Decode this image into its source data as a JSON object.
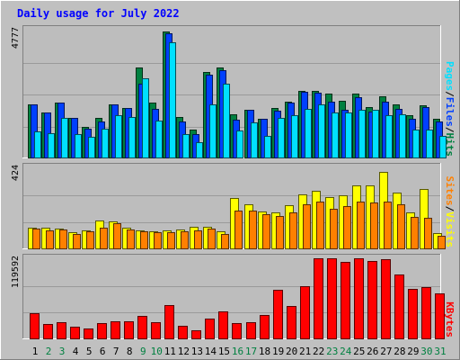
{
  "title": "Daily usage for July 2022",
  "colors": {
    "background": "#c0c0c0",
    "plot_bg": "#bdbdbd",
    "title": "#0000ff",
    "hits": "#008040",
    "files": "#0040ff",
    "pages": "#00e0ff",
    "visits": "#ffff00",
    "sites": "#ff8000",
    "kbytes": "#ff0000",
    "weekend": "#008040",
    "weekday": "#000000"
  },
  "chart_data": [
    {
      "type": "bar",
      "name": "hits-files-pages",
      "categories": [
        "1",
        "2",
        "3",
        "4",
        "5",
        "6",
        "7",
        "8",
        "9",
        "10",
        "11",
        "12",
        "13",
        "14",
        "15",
        "16",
        "17",
        "18",
        "19",
        "20",
        "21",
        "22",
        "23",
        "24",
        "25",
        "26",
        "27",
        "28",
        "29",
        "30",
        "31"
      ],
      "max_label": "4777",
      "ylim": [
        0,
        4777
      ],
      "legend": [
        "Pages",
        "/",
        "Files",
        "/",
        "Hits"
      ],
      "series": [
        {
          "name": "Hits",
          "color_key": "hits",
          "values": [
            1980,
            1670,
            2050,
            1470,
            1150,
            1480,
            2000,
            1840,
            3380,
            2040,
            4700,
            1500,
            1030,
            3200,
            3380,
            1600,
            1780,
            1430,
            1850,
            2070,
            2480,
            2490,
            2380,
            2110,
            2400,
            1900,
            2290,
            1990,
            1590,
            1950,
            1460
          ]
        },
        {
          "name": "Files",
          "color_key": "files",
          "values": [
            1980,
            1670,
            2050,
            1470,
            1060,
            1330,
            2000,
            1840,
            2760,
            1800,
            4650,
            1340,
            880,
            3100,
            3270,
            1420,
            1780,
            1430,
            1750,
            2040,
            2450,
            2420,
            2100,
            1780,
            2270,
            1730,
            2080,
            1800,
            1460,
            1880,
            1340
          ]
        },
        {
          "name": "Pages",
          "color_key": "pages",
          "values": [
            980,
            900,
            1490,
            880,
            760,
            1080,
            1570,
            1500,
            2950,
            1380,
            4320,
            880,
            580,
            2000,
            2770,
            1000,
            1320,
            820,
            1480,
            1590,
            1830,
            1990,
            1690,
            1670,
            1790,
            1770,
            1570,
            1600,
            1030,
            1050,
            810
          ]
        }
      ]
    },
    {
      "type": "bar",
      "name": "visits-sites",
      "categories": [
        "1",
        "2",
        "3",
        "4",
        "5",
        "6",
        "7",
        "8",
        "9",
        "10",
        "11",
        "12",
        "13",
        "14",
        "15",
        "16",
        "17",
        "18",
        "19",
        "20",
        "21",
        "22",
        "23",
        "24",
        "25",
        "26",
        "27",
        "28",
        "29",
        "30",
        "31"
      ],
      "max_label": "424",
      "ylim": [
        0,
        424
      ],
      "legend": [
        "Sites",
        "/",
        "Visits"
      ],
      "series": [
        {
          "name": "Visits",
          "color_key": "visits",
          "values": [
            110,
            108,
            105,
            84,
            96,
            144,
            140,
            110,
            95,
            90,
            92,
            98,
            112,
            112,
            91,
            262,
            230,
            195,
            188,
            226,
            284,
            300,
            270,
            280,
            330,
            330,
            400,
            290,
            190,
            310,
            78
          ]
        },
        {
          "name": "Sites",
          "color_key": "sites",
          "values": [
            102,
            96,
            98,
            76,
            88,
            108,
            130,
            97,
            88,
            84,
            86,
            90,
            96,
            102,
            75,
            196,
            196,
            180,
            168,
            190,
            232,
            244,
            205,
            220,
            245,
            242,
            244,
            230,
            164,
            162,
            68
          ]
        }
      ]
    },
    {
      "type": "bar",
      "name": "kbytes",
      "categories": [
        "1",
        "2",
        "3",
        "4",
        "5",
        "6",
        "7",
        "8",
        "9",
        "10",
        "11",
        "12",
        "13",
        "14",
        "15",
        "16",
        "17",
        "18",
        "19",
        "20",
        "21",
        "22",
        "23",
        "24",
        "25",
        "26",
        "27",
        "28",
        "29",
        "30",
        "31"
      ],
      "max_label": "119592",
      "ylim": [
        0,
        119592
      ],
      "legend": [
        "KBytes"
      ],
      "series": [
        {
          "name": "KBytes",
          "color_key": "kbytes",
          "values": [
            38000,
            22000,
            24000,
            18000,
            15000,
            23000,
            26000,
            25000,
            33000,
            24000,
            50000,
            19000,
            12000,
            29000,
            40000,
            23000,
            24000,
            35000,
            73000,
            48000,
            78000,
            120000,
            119000,
            114000,
            120000,
            116000,
            118000,
            96000,
            74000,
            76000,
            67000
          ]
        }
      ]
    }
  ],
  "days": {
    "labels": [
      "1",
      "2",
      "3",
      "4",
      "5",
      "6",
      "7",
      "8",
      "9",
      "10",
      "11",
      "12",
      "13",
      "14",
      "15",
      "16",
      "17",
      "18",
      "19",
      "20",
      "21",
      "22",
      "23",
      "24",
      "25",
      "26",
      "27",
      "28",
      "29",
      "30",
      "31"
    ],
    "weekend": [
      false,
      true,
      true,
      false,
      false,
      false,
      false,
      false,
      true,
      true,
      false,
      false,
      false,
      false,
      false,
      true,
      true,
      false,
      false,
      false,
      false,
      false,
      true,
      true,
      false,
      false,
      false,
      false,
      false,
      true,
      true
    ]
  }
}
